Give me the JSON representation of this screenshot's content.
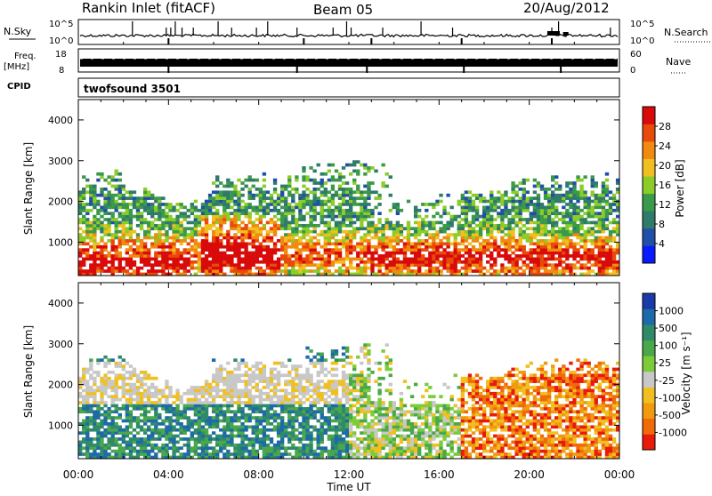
{
  "header": {
    "station": "Rankin Inlet (fitACF)",
    "beam": "Beam 05",
    "date": "20/Aug/2012"
  },
  "noise_panel": {
    "left_label": "N.Sky",
    "right_label": "N.Search",
    "left_ticks": [
      "10^5",
      "10^0"
    ],
    "right_ticks": [
      "10^5",
      "10^0"
    ]
  },
  "freq_panel": {
    "left_label_top": "Freq.",
    "left_label_unit": "[MHz]",
    "left_ticks": [
      "18",
      "8"
    ],
    "right_label": "Nave",
    "right_ticks": [
      "60",
      "0"
    ]
  },
  "cpid_panel": {
    "label": "CPID",
    "program": "twofsound 3501"
  },
  "chart_data": [
    {
      "type": "heatmap",
      "name": "power",
      "ylabel": "Slant Range [km]",
      "xlabel": "Time UT",
      "x_ticks": [
        "00:00",
        "04:00",
        "08:00",
        "12:00",
        "16:00",
        "20:00",
        "00:00"
      ],
      "x_range_hours": [
        0,
        24
      ],
      "y_ticks": [
        1000,
        2000,
        3000,
        4000
      ],
      "ylim": [
        180,
        4500
      ],
      "colorbar": {
        "label": "Power [dB]",
        "ticks": [
          "4",
          "8",
          "12",
          "16",
          "20",
          "24",
          "28"
        ],
        "colors": [
          "#0a1aff",
          "#1f4fa8",
          "#2f7a6a",
          "#3a9a4a",
          "#8ccc28",
          "#f0c020",
          "#f08a10",
          "#e84a0a",
          "#d80a0a"
        ]
      }
    },
    {
      "type": "heatmap",
      "name": "velocity",
      "ylabel": "Slant Range [km]",
      "xlabel": "Time UT",
      "x_ticks": [
        "00:00",
        "04:00",
        "08:00",
        "12:00",
        "16:00",
        "20:00",
        "00:00"
      ],
      "x_range_hours": [
        0,
        24
      ],
      "y_ticks": [
        1000,
        2000,
        3000,
        4000
      ],
      "ylim": [
        180,
        4500
      ],
      "colorbar": {
        "label": "Velocity [m s⁻¹]",
        "ticks": [
          "1000",
          "500",
          "100",
          "25",
          "-25",
          "-100",
          "-500",
          "-1000"
        ],
        "colors": [
          "#1a3aa8",
          "#1c6aa8",
          "#2f8a6a",
          "#4aa84a",
          "#7ccc3a",
          "#c8c8c8",
          "#f0c020",
          "#f09a10",
          "#f06a0a",
          "#e81a0a"
        ]
      }
    }
  ]
}
